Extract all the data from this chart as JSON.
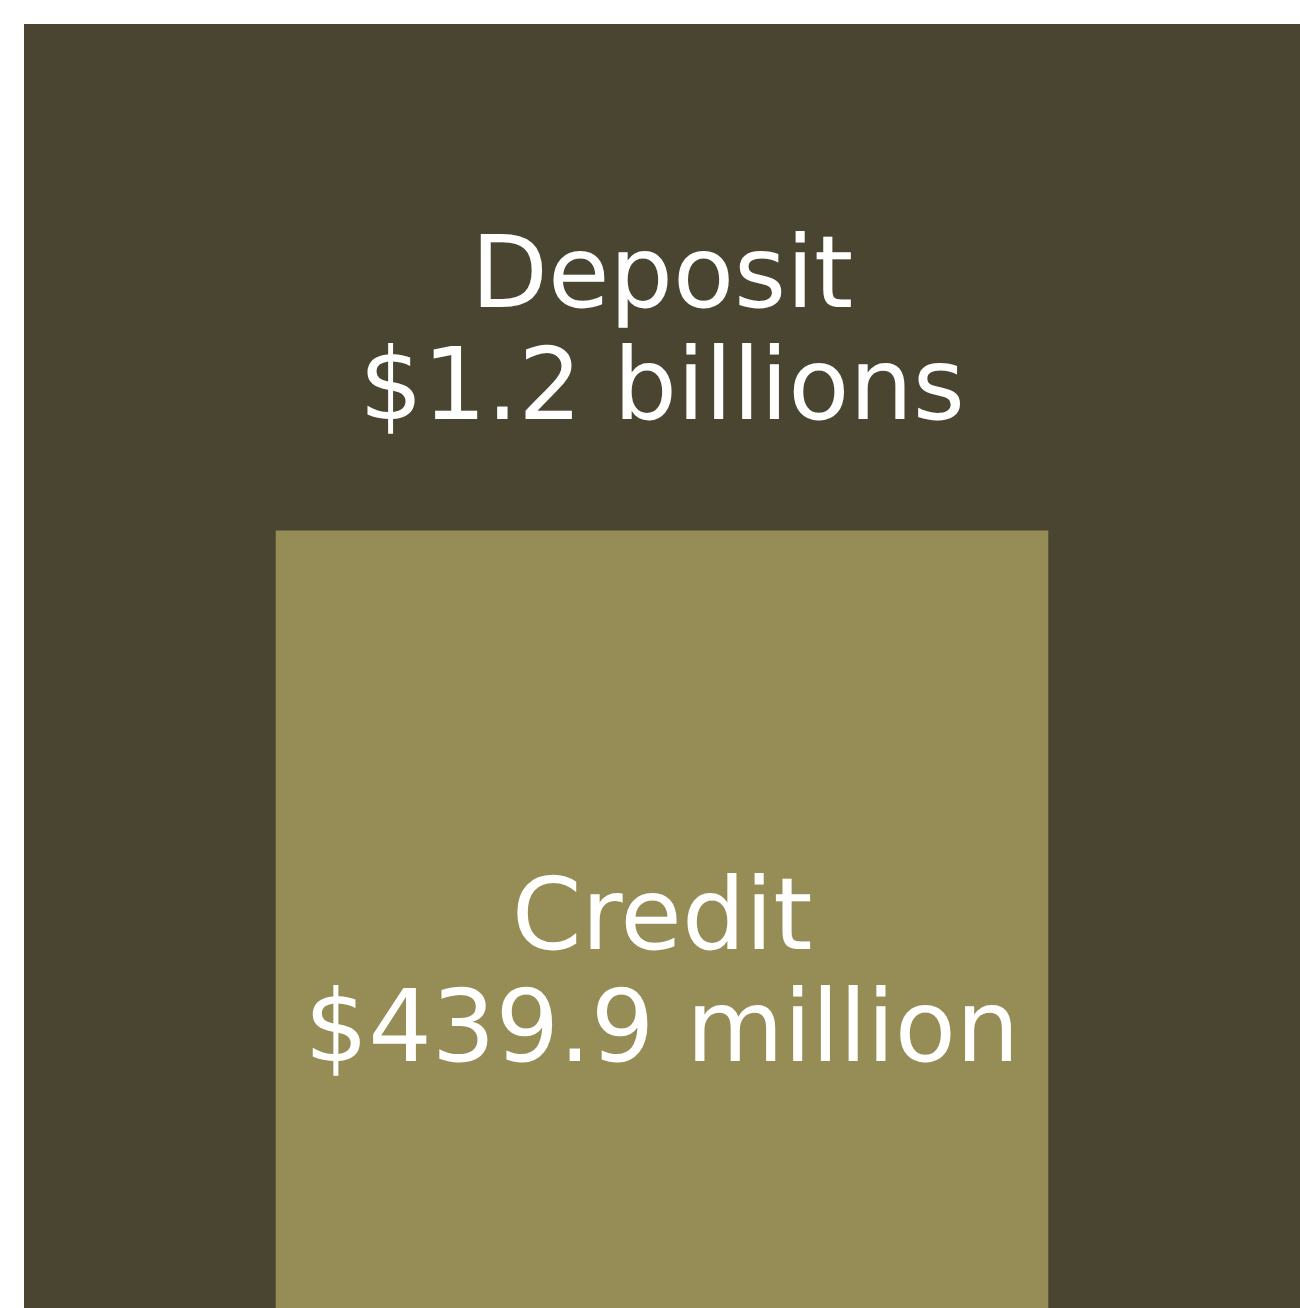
{
  "chart_data": {
    "type": "other",
    "categories": [
      "Deposit",
      "Credit"
    ],
    "values": [
      1200000000,
      439900000
    ],
    "value_labels": [
      "$1.2 billions",
      "$439.9 million"
    ],
    "colors": [
      "#4a4530",
      "#968d56"
    ]
  }
}
